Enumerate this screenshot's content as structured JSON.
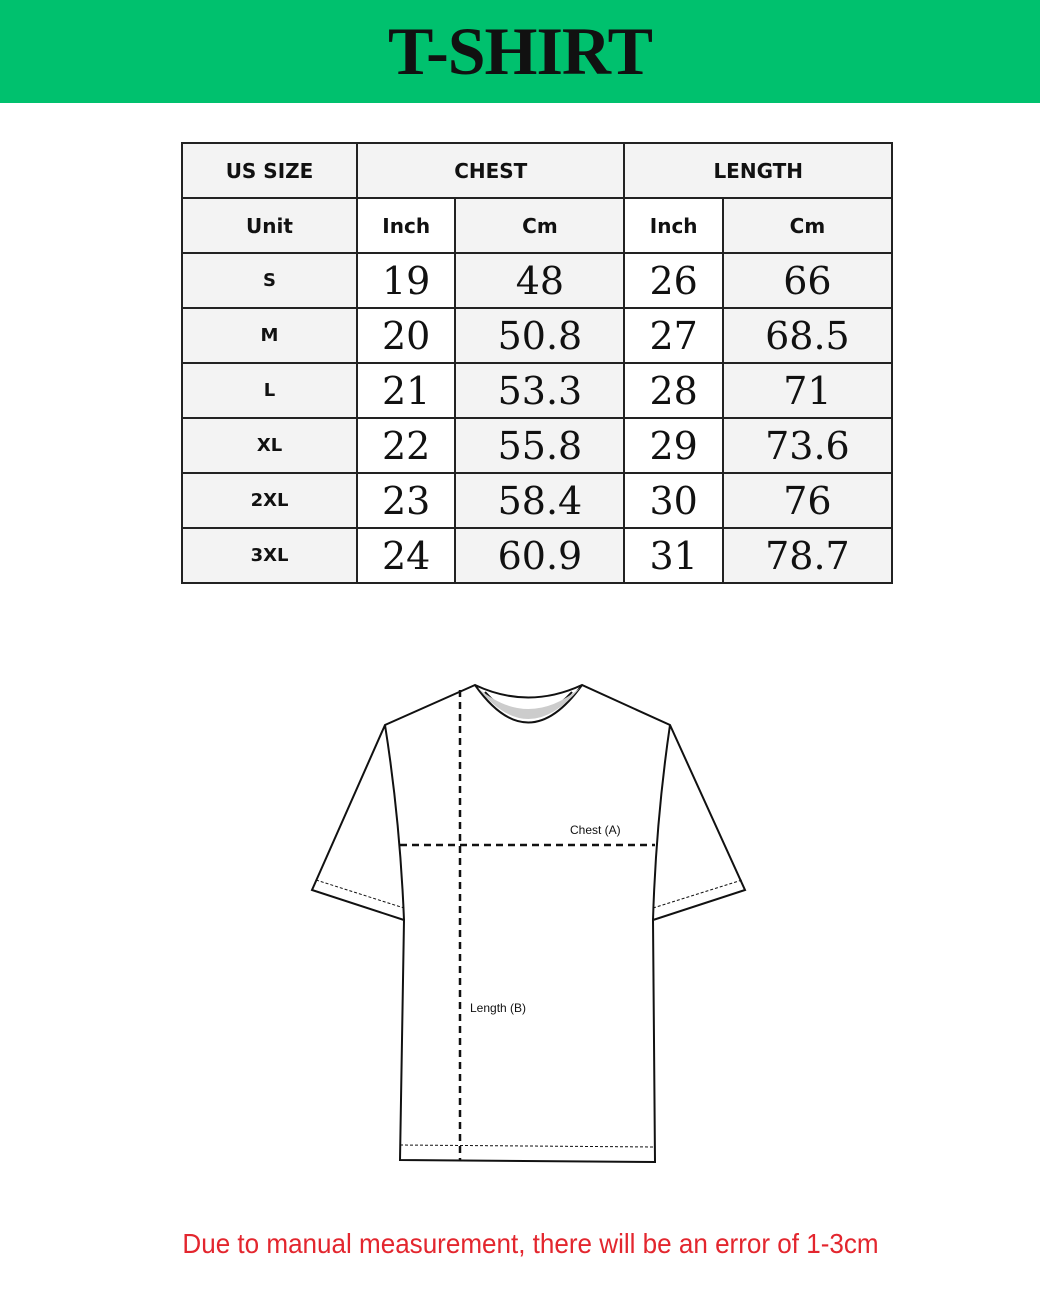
{
  "title": "T-SHIRT",
  "table": {
    "header1": [
      "US SIZE",
      "CHEST",
      "LENGTH"
    ],
    "header2": [
      "Unit",
      "Inch",
      "Cm",
      "Inch",
      "Cm"
    ],
    "rows": [
      [
        "S",
        "19",
        "48",
        "26",
        "66"
      ],
      [
        "M",
        "20",
        "50.8",
        "27",
        "68.5"
      ],
      [
        "L",
        "21",
        "53.3",
        "28",
        "71"
      ],
      [
        "XL",
        "22",
        "55.8",
        "29",
        "73.6"
      ],
      [
        "2XL",
        "23",
        "58.4",
        "30",
        "76"
      ],
      [
        "3XL",
        "24",
        "60.9",
        "31",
        "78.7"
      ]
    ]
  },
  "diagram": {
    "chest_label": "Chest (A)",
    "length_label": "Length (B)"
  },
  "note": "Due to manual measurement, there will be an error of 1-3cm",
  "colors": {
    "banner": "#00c16e",
    "note": "#e3262e"
  }
}
